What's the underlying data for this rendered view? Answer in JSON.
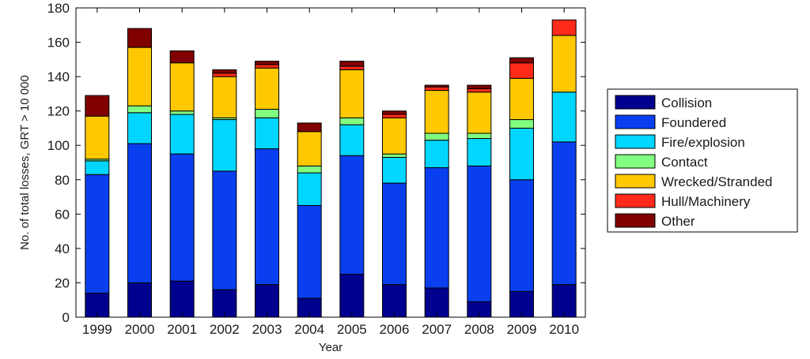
{
  "chart_data": {
    "type": "bar",
    "stacked": true,
    "categories": [
      "1999",
      "2000",
      "2001",
      "2002",
      "2003",
      "2004",
      "2005",
      "2006",
      "2007",
      "2008",
      "2009",
      "2010"
    ],
    "series": [
      {
        "name": "Collision",
        "color": "#00008f",
        "values": [
          14,
          20,
          21,
          16,
          19,
          11,
          25,
          19,
          17,
          9,
          15,
          19
        ]
      },
      {
        "name": "Foundered",
        "color": "#0a3ff0",
        "values": [
          69,
          81,
          74,
          69,
          79,
          54,
          69,
          59,
          70,
          79,
          65,
          83
        ]
      },
      {
        "name": "Fire/explosion",
        "color": "#00d6ff",
        "values": [
          8,
          18,
          23,
          30,
          18,
          19,
          18,
          15,
          16,
          16,
          30,
          29
        ]
      },
      {
        "name": "Contact",
        "color": "#80ff80",
        "values": [
          1,
          4,
          2,
          1,
          5,
          4,
          4,
          2,
          4,
          3,
          5,
          0
        ]
      },
      {
        "name": "Wrecked/Stranded",
        "color": "#ffc800",
        "values": [
          25,
          34,
          28,
          24,
          24,
          20,
          28,
          21,
          25,
          24,
          24,
          33
        ]
      },
      {
        "name": "Hull/Machinery",
        "color": "#ff2a1a",
        "values": [
          0,
          0,
          0,
          2,
          2,
          0,
          2,
          2,
          2,
          2,
          9,
          9
        ]
      },
      {
        "name": "Other",
        "color": "#800000",
        "values": [
          12,
          11,
          7,
          2,
          2,
          5,
          3,
          2,
          1,
          2,
          3,
          0
        ]
      }
    ],
    "title": "",
    "xlabel": "Year",
    "ylabel": "No. of total losses, GRT > 10 000",
    "ylim": [
      0,
      180
    ],
    "yticks": [
      "0",
      "20",
      "40",
      "60",
      "80",
      "100",
      "120",
      "140",
      "160",
      "180"
    ],
    "grid": false,
    "legend_position": "right"
  }
}
